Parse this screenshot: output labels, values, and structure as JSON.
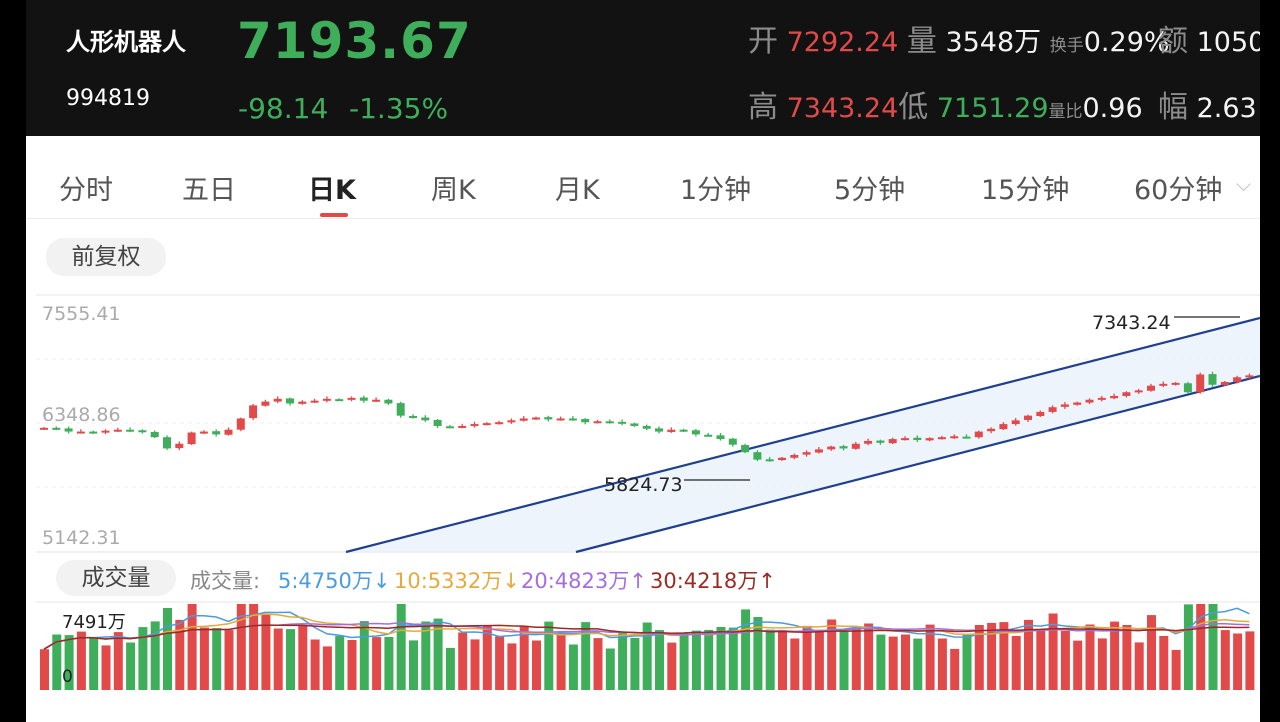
{
  "header": {
    "name": "人形机器人",
    "code": "994819",
    "price": "7193.67",
    "change": "-98.14",
    "change_pct": "-1.35%",
    "open_label": "开",
    "open": "7292.24",
    "volume_label": "量",
    "volume": "3548万",
    "turnover_label": "换手",
    "turnover": "0.29%",
    "amount_label": "额",
    "amount": "1050",
    "high_label": "高",
    "high": "7343.24",
    "low_label": "低",
    "low": "7151.29",
    "vol_ratio_label": "量比",
    "vol_ratio": "0.96",
    "range_label": "幅",
    "range": "2.63"
  },
  "tabs": [
    {
      "label": "分时"
    },
    {
      "label": "五日"
    },
    {
      "label": "日K"
    },
    {
      "label": "周K"
    },
    {
      "label": "月K"
    },
    {
      "label": "1分钟"
    },
    {
      "label": "5分钟"
    },
    {
      "label": "15分钟"
    },
    {
      "label": "60分钟"
    }
  ],
  "active_tab": "日K",
  "adjust_label": "前复权",
  "colors": {
    "up": "#e24a4a",
    "down": "#3fae5a",
    "channel": "#1f3f8f"
  },
  "chart_data": {
    "type": "candlestick",
    "y_axis_labels": [
      "7555.41",
      "6348.86",
      "5142.31"
    ],
    "ylim": [
      5142.31,
      7555.41
    ],
    "annotations": {
      "low_marker": "5824.73",
      "high_marker": "7343.24"
    },
    "closes": [
      6340,
      6330,
      6300,
      6300,
      6290,
      6310,
      6320,
      6310,
      6300,
      6240,
      6120,
      6170,
      6290,
      6300,
      6270,
      6320,
      6440,
      6580,
      6620,
      6650,
      6600,
      6620,
      6630,
      6650,
      6640,
      6660,
      6630,
      6640,
      6600,
      6470,
      6450,
      6420,
      6360,
      6350,
      6360,
      6380,
      6390,
      6400,
      6420,
      6440,
      6450,
      6430,
      6440,
      6430,
      6400,
      6410,
      6400,
      6390,
      6360,
      6330,
      6300,
      6320,
      6310,
      6270,
      6260,
      6220,
      6160,
      6080,
      6000,
      6000,
      6020,
      6050,
      6080,
      6110,
      6140,
      6120,
      6170,
      6200,
      6180,
      6220,
      6230,
      6210,
      6230,
      6240,
      6250,
      6240,
      6300,
      6330,
      6380,
      6420,
      6470,
      6510,
      6560,
      6590,
      6610,
      6640,
      6660,
      6680,
      6720,
      6740,
      6790,
      6810,
      6820,
      6720,
      6910,
      6800,
      6830,
      6880,
      6900
    ],
    "volume_labels": {
      "max": "7491万",
      "min": "0"
    },
    "volume_title": "成交量",
    "volume_prefix": "成交量:",
    "ma_volume": [
      {
        "label": "5:4750万",
        "color": "#4a9be0"
      },
      {
        "label": "10:5332万",
        "color": "#e7a93d"
      },
      {
        "label": "20:4823万",
        "color": "#a46ee0"
      },
      {
        "label": "30:4218万",
        "color": "#9b2a22"
      }
    ]
  }
}
